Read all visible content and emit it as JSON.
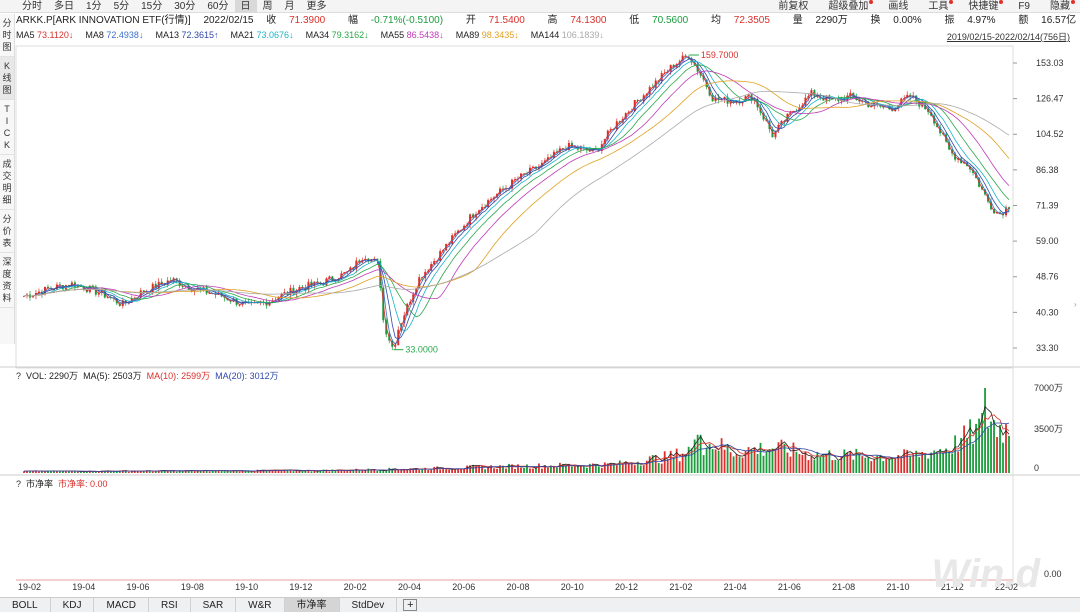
{
  "periods": [
    "分时",
    "多日",
    "1分",
    "5分",
    "15分",
    "30分",
    "60分",
    "日",
    "周",
    "月",
    "更多"
  ],
  "active_period": "日",
  "top_right": [
    {
      "label": "前复权",
      "dot": false
    },
    {
      "label": "超级叠加",
      "dot": true
    },
    {
      "label": "画线",
      "dot": false
    },
    {
      "label": "工具",
      "dot": true
    },
    {
      "label": "快捷键",
      "dot": true
    },
    {
      "label": "F9",
      "dot": false
    },
    {
      "label": "隐藏",
      "dot": true
    }
  ],
  "info": {
    "name": "ARKK.P[ARK INNOVATION ETF(行情)]",
    "date": "2022/02/15",
    "close_label": "收 ",
    "close": "71.3900",
    "change_label": "幅 ",
    "change": "-0.71%(-0.5100)",
    "open_label": "开 ",
    "open": "71.5400",
    "high_label": "高 ",
    "high": "74.1300",
    "low_label": "低 ",
    "low": "70.5600",
    "avg_label": "均 ",
    "avg": "72.3505",
    "vol_label": "量 ",
    "vol": "2290万",
    "turn_label": "换 ",
    "turn": "0.00%",
    "amp_label": "振 ",
    "amp": "4.97%",
    "amt_label": "额 ",
    "amt": "16.57亿"
  },
  "ma_legend": [
    {
      "label": "MA5",
      "value": "73.1120↓",
      "color": "#d9302b"
    },
    {
      "label": "MA8",
      "value": "72.4938↓",
      "color": "#3c6fc8"
    },
    {
      "label": "MA13",
      "value": "72.3615↑",
      "color": "#3048a8"
    },
    {
      "label": "MA21",
      "value": "73.0676↓",
      "color": "#18b5c8"
    },
    {
      "label": "MA34",
      "value": "79.3162↓",
      "color": "#2aa84a"
    },
    {
      "label": "MA55",
      "value": "86.5438↓",
      "color": "#c03ab8"
    },
    {
      "label": "MA89",
      "value": "98.3435↓",
      "color": "#e0a020"
    },
    {
      "label": "MA144",
      "value": "106.1839↓",
      "color": "#aaaaaa"
    }
  ],
  "daterange": "2019/02/15-2022/02/14(756日)",
  "sidebar": [
    {
      "chars": [
        "分",
        "时",
        "图"
      ],
      "active": false
    },
    {
      "chars": [
        "K",
        "线",
        "图"
      ],
      "active": true
    },
    {
      "chars": [
        "T",
        "I",
        "C",
        "K"
      ],
      "active": false
    },
    {
      "chars": [
        "成",
        "交",
        "明",
        "细"
      ],
      "active": false
    },
    {
      "chars": [
        "分",
        "价",
        "表"
      ],
      "active": false
    },
    {
      "chars": [
        "深",
        "度",
        "资",
        "料"
      ],
      "active": false
    }
  ],
  "annotations": {
    "high": "159.7000",
    "low": "33.0000"
  },
  "vol_header": [
    {
      "label": "?",
      "color": "#333"
    },
    {
      "label": "VOL: 2290万",
      "color": "#222"
    },
    {
      "label": "MA(5): 2503万",
      "color": "#222"
    },
    {
      "label": "MA(10): 2599万",
      "color": "#d9302b"
    },
    {
      "label": "MA(20): 3012万",
      "color": "#3048a8"
    }
  ],
  "pb_header": [
    {
      "label": "?",
      "color": "#333"
    },
    {
      "label": "市净率",
      "color": "#222"
    },
    {
      "label": "市净率: 0.00",
      "color": "#d9302b"
    }
  ],
  "watermark": "Win.d",
  "bottom_tabs": [
    "BOLL",
    "KDJ",
    "MACD",
    "RSI",
    "SAR",
    "W&R",
    "市净率",
    "StdDev"
  ],
  "active_tab": "市净率",
  "chart_data": {
    "type": "line",
    "title": "ARKK.P",
    "price_axis": {
      "ticks": [
        153.03,
        126.47,
        104.52,
        86.38,
        71.39,
        59.0,
        48.76,
        40.3,
        33.3
      ],
      "scale": "log"
    },
    "volume_axis": {
      "ticks": [
        "7000万",
        "3500万",
        "0"
      ]
    },
    "pb_axis": {
      "ticks": [
        "0.00"
      ]
    },
    "x_labels": [
      "19-02",
      "19-04",
      "19-06",
      "19-08",
      "19-10",
      "19-12",
      "20-02",
      "20-04",
      "20-06",
      "20-08",
      "20-10",
      "20-12",
      "21-02",
      "21-04",
      "21-06",
      "21-08",
      "21-10",
      "21-12",
      "22-02"
    ],
    "price_path": [
      [
        0,
        44
      ],
      [
        0.03,
        46
      ],
      [
        0.05,
        47
      ],
      [
        0.08,
        44.5
      ],
      [
        0.1,
        42
      ],
      [
        0.12,
        45
      ],
      [
        0.15,
        48
      ],
      [
        0.17,
        46
      ],
      [
        0.2,
        44
      ],
      [
        0.23,
        41.5
      ],
      [
        0.25,
        43
      ],
      [
        0.28,
        46
      ],
      [
        0.3,
        47
      ],
      [
        0.33,
        50
      ],
      [
        0.345,
        55
      ],
      [
        0.36,
        52
      ],
      [
        0.365,
        38
      ],
      [
        0.375,
        33
      ],
      [
        0.38,
        37
      ],
      [
        0.4,
        48
      ],
      [
        0.43,
        58
      ],
      [
        0.46,
        70
      ],
      [
        0.5,
        82
      ],
      [
        0.53,
        90
      ],
      [
        0.55,
        98
      ],
      [
        0.58,
        95
      ],
      [
        0.6,
        110
      ],
      [
        0.63,
        130
      ],
      [
        0.66,
        152
      ],
      [
        0.675,
        159.7
      ],
      [
        0.69,
        140
      ],
      [
        0.7,
        126
      ],
      [
        0.72,
        125
      ],
      [
        0.74,
        128
      ],
      [
        0.76,
        104
      ],
      [
        0.78,
        118
      ],
      [
        0.8,
        130
      ],
      [
        0.82,
        125
      ],
      [
        0.84,
        128
      ],
      [
        0.86,
        122
      ],
      [
        0.88,
        120
      ],
      [
        0.9,
        128
      ],
      [
        0.92,
        118
      ],
      [
        0.94,
        95
      ],
      [
        0.96,
        88
      ],
      [
        0.98,
        72
      ],
      [
        0.99,
        68
      ],
      [
        1.0,
        71.39
      ]
    ],
    "volume_profile": [
      [
        0,
        0.02
      ],
      [
        0.3,
        0.03
      ],
      [
        0.4,
        0.05
      ],
      [
        0.5,
        0.08
      ],
      [
        0.6,
        0.1
      ],
      [
        0.66,
        0.2
      ],
      [
        0.68,
        0.3
      ],
      [
        0.7,
        0.35
      ],
      [
        0.72,
        0.25
      ],
      [
        0.76,
        0.3
      ],
      [
        0.8,
        0.22
      ],
      [
        0.86,
        0.2
      ],
      [
        0.9,
        0.2
      ],
      [
        0.94,
        0.3
      ],
      [
        0.96,
        0.45
      ],
      [
        0.98,
        0.6
      ],
      [
        1.0,
        0.5
      ]
    ],
    "volume_spikes": [
      [
        0.685,
        0.45
      ],
      [
        0.975,
        1.0
      ]
    ]
  }
}
